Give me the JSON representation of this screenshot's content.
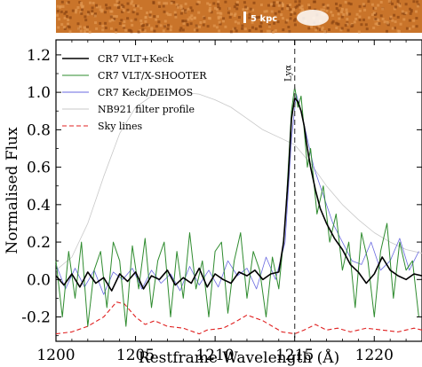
{
  "chart_data": {
    "type": "line",
    "xlabel": "Restframe Wavelength (Å)",
    "ylabel": "Normalised Flux",
    "xlim": [
      1200,
      1223
    ],
    "ylim": [
      -0.33,
      1.28
    ],
    "xticks": [
      1200,
      1205,
      1210,
      1215,
      1220
    ],
    "yticks": [
      -0.2,
      0.0,
      0.2,
      0.4,
      0.6,
      0.8,
      1.0,
      1.2
    ],
    "xtick_labels": [
      "1200",
      "1205",
      "1210",
      "1215",
      "1220"
    ],
    "ytick_labels": [
      "-0.2",
      "0.0",
      "0.2",
      "0.4",
      "0.6",
      "0.8",
      "1.0",
      "1.2"
    ],
    "grid": false,
    "legend_position": "top-left",
    "annotations": [
      {
        "text": "Lyα",
        "x": 1215.0
      }
    ],
    "vline": {
      "x": 1215.0,
      "style": "dashed",
      "color": "#555555"
    },
    "inset": {
      "type": "image",
      "description_label": "5 kpc",
      "scale_bar_text": "5 kpc"
    },
    "series": [
      {
        "name": "CR7 VLT+Keck",
        "color": "#000000",
        "width": 1.6,
        "x": [
          1200.0,
          1200.5,
          1201.0,
          1201.5,
          1202.0,
          1202.5,
          1203.0,
          1203.5,
          1204.0,
          1204.5,
          1205.0,
          1205.5,
          1206.0,
          1206.5,
          1207.0,
          1207.5,
          1208.0,
          1208.5,
          1209.0,
          1209.5,
          1210.0,
          1210.5,
          1211.0,
          1211.5,
          1212.0,
          1212.5,
          1213.0,
          1213.5,
          1214.0,
          1214.3,
          1214.6,
          1214.8,
          1215.0,
          1215.2,
          1215.4,
          1215.6,
          1215.8,
          1216.0,
          1216.3,
          1216.6,
          1217.0,
          1217.5,
          1218.0,
          1218.5,
          1219.0,
          1219.5,
          1220.0,
          1220.5,
          1221.0,
          1221.5,
          1222.0,
          1222.5,
          1223.0
        ],
        "y": [
          0.02,
          -0.03,
          0.03,
          -0.04,
          0.04,
          -0.02,
          0.01,
          -0.06,
          0.03,
          -0.01,
          0.04,
          -0.05,
          0.02,
          0.0,
          0.05,
          -0.03,
          0.01,
          -0.02,
          0.06,
          -0.04,
          0.03,
          0.0,
          -0.02,
          0.04,
          0.02,
          0.05,
          0.0,
          0.03,
          0.04,
          0.2,
          0.55,
          0.86,
          0.97,
          0.95,
          0.9,
          0.82,
          0.7,
          0.6,
          0.48,
          0.38,
          0.3,
          0.22,
          0.16,
          0.08,
          0.04,
          -0.02,
          0.03,
          0.12,
          0.05,
          0.02,
          0.0,
          0.03,
          0.02
        ]
      },
      {
        "name": "CR7 VLT/X-SHOOTER",
        "color": "#2e8b2e",
        "width": 1.0,
        "x": [
          1200.0,
          1200.4,
          1200.8,
          1201.2,
          1201.6,
          1202.0,
          1202.4,
          1202.8,
          1203.2,
          1203.6,
          1204.0,
          1204.4,
          1204.8,
          1205.2,
          1205.6,
          1206.0,
          1206.4,
          1206.8,
          1207.2,
          1207.6,
          1208.0,
          1208.4,
          1208.8,
          1209.2,
          1209.6,
          1210.0,
          1210.4,
          1210.8,
          1211.2,
          1211.6,
          1212.0,
          1212.4,
          1212.8,
          1213.2,
          1213.6,
          1214.0,
          1214.4,
          1214.6,
          1214.8,
          1215.0,
          1215.2,
          1215.4,
          1215.6,
          1215.8,
          1216.0,
          1216.4,
          1216.8,
          1217.2,
          1217.6,
          1218.0,
          1218.4,
          1218.8,
          1219.2,
          1219.6,
          1220.0,
          1220.4,
          1220.8,
          1221.2,
          1221.6,
          1222.0,
          1222.4,
          1222.8
        ],
        "y": [
          0.1,
          -0.2,
          0.15,
          -0.1,
          0.2,
          -0.25,
          0.05,
          0.15,
          -0.15,
          0.2,
          0.1,
          -0.25,
          0.18,
          -0.05,
          0.22,
          -0.15,
          0.1,
          0.2,
          -0.2,
          0.15,
          -0.1,
          0.25,
          -0.05,
          0.1,
          -0.2,
          0.15,
          0.2,
          -0.18,
          0.1,
          0.25,
          -0.1,
          0.15,
          0.05,
          -0.2,
          0.12,
          -0.05,
          0.3,
          0.6,
          0.9,
          1.03,
          0.92,
          0.98,
          0.8,
          0.6,
          0.7,
          0.35,
          0.5,
          0.2,
          0.35,
          0.05,
          0.2,
          -0.15,
          0.25,
          0.1,
          -0.2,
          0.15,
          0.3,
          -0.1,
          0.2,
          0.05,
          0.1,
          -0.2
        ]
      },
      {
        "name": "CR7 Keck/DEIMOS",
        "color": "#6a6ae0",
        "width": 0.8,
        "x": [
          1200.0,
          1200.6,
          1201.2,
          1201.8,
          1202.4,
          1203.0,
          1203.6,
          1204.2,
          1204.8,
          1205.4,
          1206.0,
          1206.6,
          1207.2,
          1207.8,
          1208.4,
          1209.0,
          1209.6,
          1210.2,
          1210.8,
          1211.4,
          1212.0,
          1212.6,
          1213.2,
          1213.8,
          1214.4,
          1214.8,
          1215.1,
          1215.4,
          1215.8,
          1216.2,
          1216.8,
          1217.4,
          1218.0,
          1218.6,
          1219.2,
          1219.8,
          1220.4,
          1221.0,
          1221.6,
          1222.2,
          1222.8
        ],
        "y": [
          0.08,
          -0.05,
          0.06,
          -0.04,
          0.05,
          -0.08,
          0.04,
          0.0,
          0.06,
          -0.05,
          0.05,
          -0.02,
          0.03,
          -0.06,
          0.07,
          -0.03,
          0.05,
          -0.04,
          0.1,
          0.02,
          0.06,
          -0.05,
          0.12,
          0.0,
          0.2,
          0.75,
          0.99,
          0.9,
          0.75,
          0.6,
          0.45,
          0.3,
          0.2,
          0.1,
          0.08,
          0.2,
          0.05,
          0.1,
          0.22,
          0.05,
          0.15
        ]
      },
      {
        "name": "NB921 filter profile",
        "color": "#c8c8c8",
        "width": 0.8,
        "x": [
          1200.0,
          1201.0,
          1202.0,
          1203.0,
          1204.0,
          1205.0,
          1206.0,
          1207.0,
          1208.0,
          1209.0,
          1210.0,
          1211.0,
          1212.0,
          1213.0,
          1214.0,
          1215.0,
          1216.0,
          1217.0,
          1218.0,
          1219.0,
          1220.0,
          1221.0,
          1222.0,
          1223.0
        ],
        "y": [
          0.05,
          0.12,
          0.3,
          0.55,
          0.78,
          0.92,
          0.98,
          1.0,
          1.0,
          0.99,
          0.96,
          0.92,
          0.86,
          0.8,
          0.76,
          0.72,
          0.62,
          0.5,
          0.4,
          0.32,
          0.25,
          0.2,
          0.16,
          0.14
        ]
      },
      {
        "name": "Sky lines",
        "color": "#e02020",
        "width": 1.1,
        "dashed": true,
        "x": [
          1200.0,
          1201.0,
          1202.0,
          1203.0,
          1203.8,
          1204.3,
          1205.0,
          1205.6,
          1206.2,
          1207.0,
          1208.0,
          1209.0,
          1209.5,
          1210.5,
          1211.2,
          1212.0,
          1213.0,
          1213.6,
          1214.2,
          1215.0,
          1215.6,
          1216.3,
          1217.0,
          1217.7,
          1218.5,
          1219.5,
          1220.5,
          1221.5,
          1222.5,
          1223.0
        ],
        "y": [
          -0.29,
          -0.28,
          -0.25,
          -0.2,
          -0.12,
          -0.13,
          -0.2,
          -0.24,
          -0.22,
          -0.25,
          -0.26,
          -0.29,
          -0.27,
          -0.26,
          -0.23,
          -0.19,
          -0.22,
          -0.25,
          -0.28,
          -0.29,
          -0.27,
          -0.24,
          -0.27,
          -0.26,
          -0.28,
          -0.26,
          -0.27,
          -0.28,
          -0.26,
          -0.27
        ]
      }
    ]
  },
  "colors": {
    "inset_background": "#c9742a",
    "inset_blob": "#ffffff"
  }
}
